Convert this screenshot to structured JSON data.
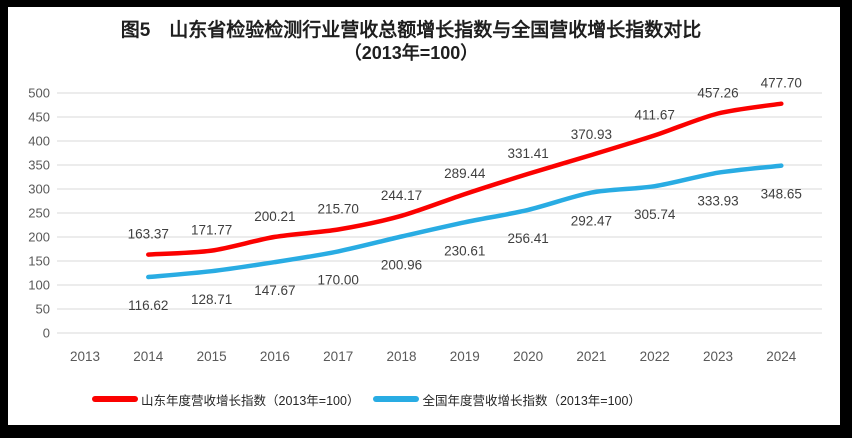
{
  "chart_data": {
    "type": "line",
    "title": "图5　山东省检验检测行业营收总额增长指数与全国营收增长指数对比",
    "subtitle": "（2013年=100）",
    "categories": [
      "2013",
      "2014",
      "2015",
      "2016",
      "2017",
      "2018",
      "2019",
      "2020",
      "2021",
      "2022",
      "2023",
      "2024"
    ],
    "series": [
      {
        "name": "山东年度营收增长指数（2013年=100）",
        "color": "#fb0100",
        "values": [
          null,
          163.37,
          171.77,
          200.21,
          215.7,
          244.17,
          289.44,
          331.41,
          370.93,
          411.67,
          457.26,
          477.7
        ]
      },
      {
        "name": "全国年度营收增长指数（2013年=100）",
        "color": "#29ace3",
        "values": [
          null,
          116.62,
          128.71,
          147.67,
          170.0,
          200.96,
          230.61,
          256.41,
          292.47,
          305.74,
          333.93,
          348.65
        ]
      }
    ],
    "xlabel": "",
    "ylabel": "",
    "ylim": [
      0,
      500
    ],
    "ytick_step": 50,
    "grid": true,
    "legend_position": "bottom",
    "gridline_color": "#d9d9d9",
    "axis_text_color": "#595959",
    "data_label_color": "#3f3f3f",
    "frame_color": "#000000",
    "background_color": "#ffffff"
  }
}
